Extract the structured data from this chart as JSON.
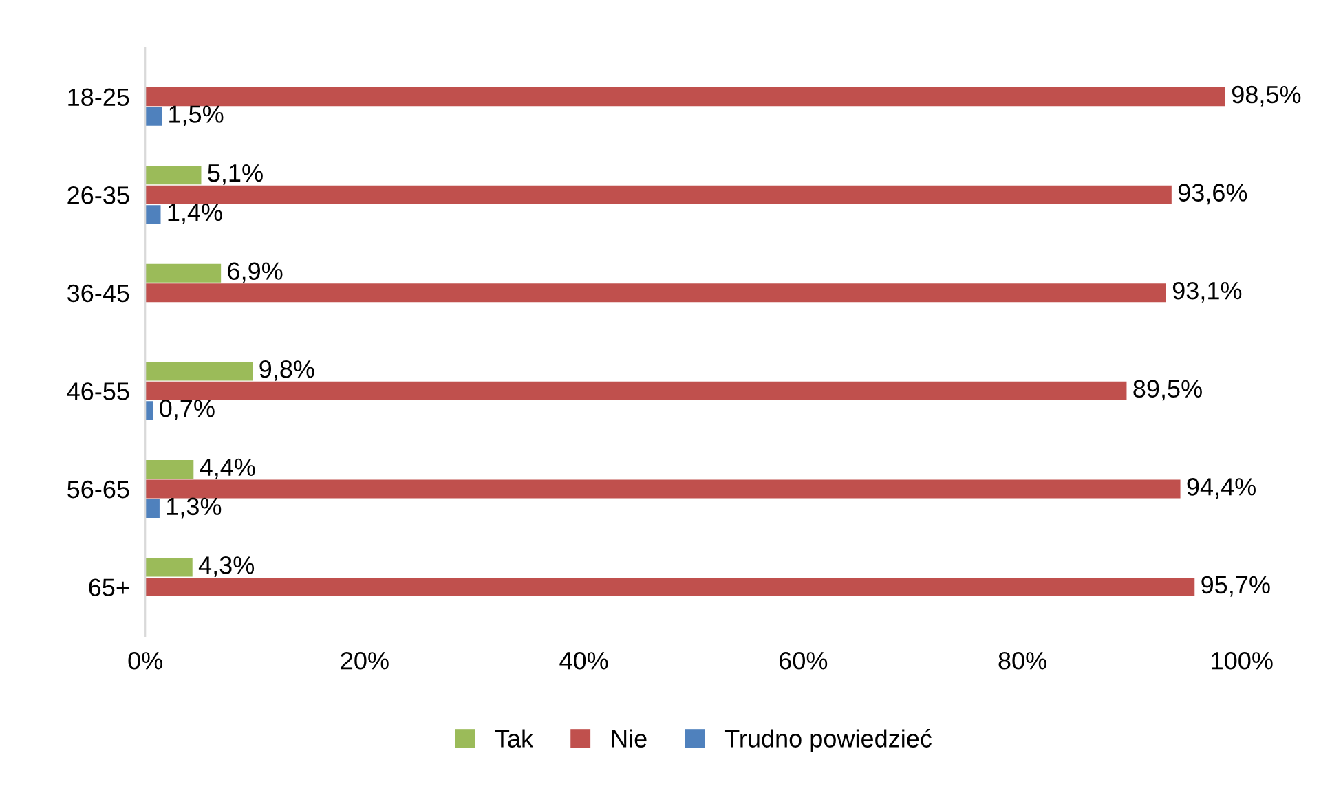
{
  "chart_data": {
    "type": "bar",
    "orientation": "horizontal",
    "categories": [
      "18-25",
      "26-35",
      "36-45",
      "46-55",
      "56-65",
      "65+"
    ],
    "series": [
      {
        "name": "Tak",
        "color": "#9bbb59",
        "values": [
          null,
          5.1,
          6.9,
          9.8,
          4.4,
          4.3
        ],
        "value_labels": [
          null,
          "5,1%",
          "6,9%",
          "9,8%",
          "4,4%",
          "4,3%"
        ]
      },
      {
        "name": "Nie",
        "color": "#c0504d",
        "values": [
          98.5,
          93.6,
          93.1,
          89.5,
          94.4,
          95.7
        ],
        "value_labels": [
          "98,5%",
          "93,6%",
          "93,1%",
          "89,5%",
          "94,4%",
          "95,7%"
        ]
      },
      {
        "name": "Trudno powiedzieć",
        "color": "#4f81bd",
        "values": [
          1.5,
          1.4,
          null,
          0.7,
          1.3,
          null
        ],
        "value_labels": [
          "1,5%",
          "1,4%",
          null,
          "0,7%",
          "1,3%",
          null
        ]
      }
    ],
    "xlim": [
      0,
      100
    ],
    "xticks": [
      {
        "value": 0,
        "label": "0%"
      },
      {
        "value": 20,
        "label": "20%"
      },
      {
        "value": 40,
        "label": "40%"
      },
      {
        "value": 60,
        "label": "60%"
      },
      {
        "value": 80,
        "label": "80%"
      },
      {
        "value": 100,
        "label": "100%"
      }
    ],
    "grid": false,
    "legend": "bottom"
  }
}
